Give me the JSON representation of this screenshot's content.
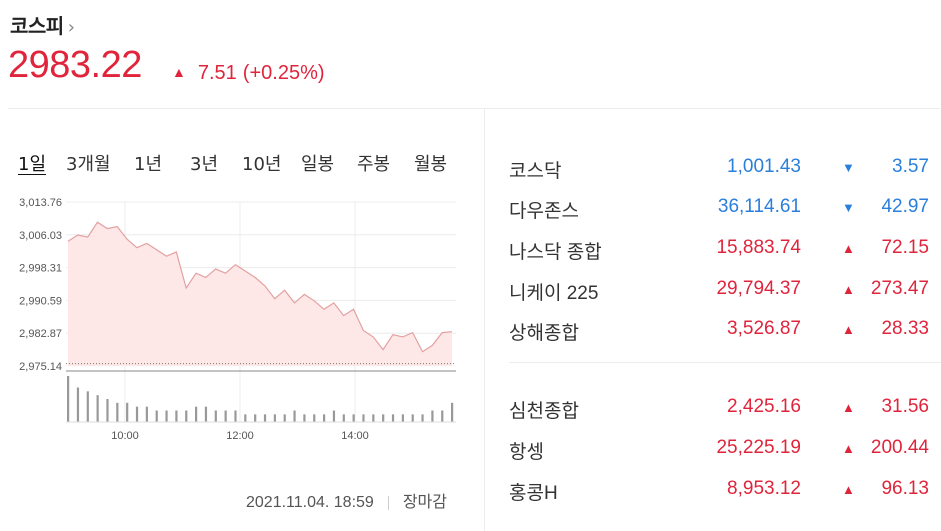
{
  "header": {
    "title": "코스피",
    "price": "2983.22",
    "change": "7.51",
    "change_pct": "(+0.25%)"
  },
  "periods": [
    "1일",
    "3개월",
    "1년",
    "3년",
    "10년",
    "일봉",
    "주봉",
    "월봉"
  ],
  "timestamp": "2021.11.04. 18:59",
  "market_status": "장마감",
  "indices": [
    {
      "name": "코스닥",
      "value": "1,001.43",
      "change": "3.57",
      "direction": "down"
    },
    {
      "name": "다우존스",
      "value": "36,114.61",
      "change": "42.97",
      "direction": "down"
    },
    {
      "name": "나스닥 종합",
      "value": "15,883.74",
      "change": "72.15",
      "direction": "up"
    },
    {
      "name": "니케이 225",
      "value": "29,794.37",
      "change": "273.47",
      "direction": "up"
    },
    {
      "name": "상해종합",
      "value": "3,526.87",
      "change": "28.33",
      "direction": "up"
    },
    {
      "name": "심천종합",
      "value": "2,425.16",
      "change": "31.56",
      "direction": "up"
    },
    {
      "name": "항셍",
      "value": "25,225.19",
      "change": "200.44",
      "direction": "up"
    },
    {
      "name": "홍콩H",
      "value": "8,953.12",
      "change": "96.13",
      "direction": "up"
    }
  ],
  "colors": {
    "up": "#e0243b",
    "down": "#2a7fdc",
    "area_fill": "#fde7e7",
    "line": "#e3a0a0"
  },
  "chart_data": {
    "type": "area",
    "yticks": [
      "3,013.76",
      "3,006.03",
      "2,998.31",
      "2,990.59",
      "2,982.87",
      "2,975.14"
    ],
    "xticks": [
      "10:00",
      "12:00",
      "14:00"
    ],
    "ylim": [
      2975.14,
      3013.76
    ],
    "prev_close": 2975.71,
    "x": [
      "09:00",
      "09:10",
      "09:20",
      "09:30",
      "09:40",
      "09:50",
      "10:00",
      "10:10",
      "10:20",
      "10:30",
      "10:40",
      "10:50",
      "11:00",
      "11:10",
      "11:20",
      "11:30",
      "11:40",
      "11:50",
      "12:00",
      "12:10",
      "12:20",
      "12:30",
      "12:40",
      "12:50",
      "13:00",
      "13:10",
      "13:20",
      "13:30",
      "13:40",
      "13:50",
      "14:00",
      "14:10",
      "14:20",
      "14:30",
      "14:40",
      "14:50",
      "15:00",
      "15:10",
      "15:20",
      "15:30"
    ],
    "values": [
      3004.5,
      3006.0,
      3005.5,
      3009.0,
      3007.5,
      3008.0,
      3005.0,
      3003.0,
      3004.0,
      3002.5,
      3001.0,
      3002.0,
      2993.5,
      2997.0,
      2996.0,
      2998.0,
      2997.0,
      2999.0,
      2997.5,
      2996.0,
      2994.0,
      2991.0,
      2993.0,
      2990.0,
      2992.0,
      2990.5,
      2988.5,
      2990.0,
      2987.0,
      2988.5,
      2983.5,
      2982.0,
      2979.0,
      2982.5,
      2982.0,
      2983.0,
      2978.5,
      2980.0,
      2983.0,
      2983.22
    ],
    "volume": [
      12,
      9,
      8,
      7,
      6,
      5,
      5,
      4,
      4,
      3,
      3,
      3,
      3,
      4,
      4,
      3,
      3,
      3,
      2,
      2,
      2,
      2,
      2,
      3,
      2,
      2,
      2,
      3,
      2,
      2,
      2,
      2,
      2,
      2,
      2,
      2,
      2,
      3,
      3,
      5
    ]
  }
}
